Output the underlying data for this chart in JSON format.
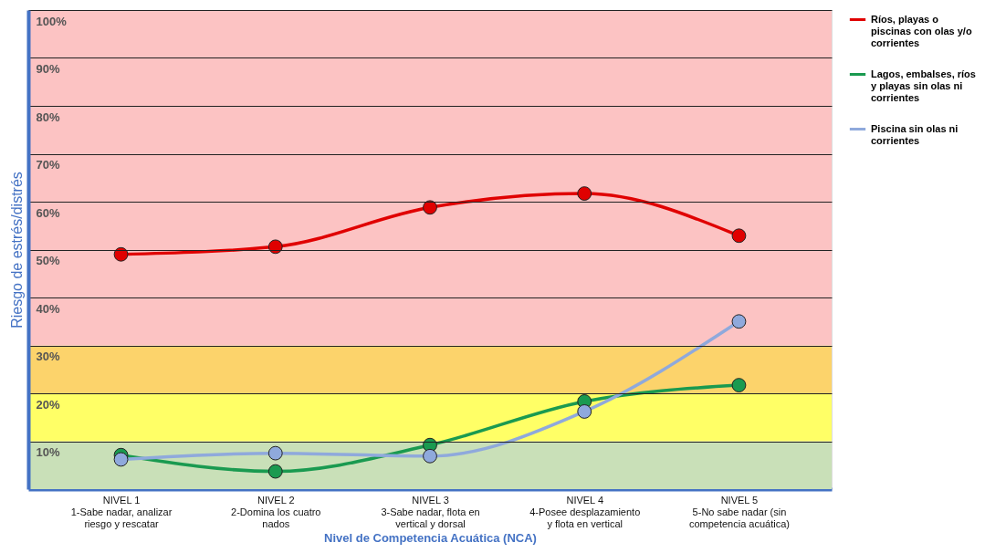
{
  "chart_data": {
    "type": "line",
    "xlabel": "Nivel de Competencia Acuática (NCA)",
    "ylabel": "Riesgo de estrés/distrés",
    "categories": [
      "NIVEL 1\n1-Sabe nadar, analizar\nriesgo y rescatar",
      "NIVEL 2\n2-Domina los cuatro\nnados",
      "NIVEL 3\n3-Sabe nadar, flota en\nvertical y dorsal",
      "NIVEL 4\n4-Posee desplazamiento\ny flota en vertical",
      "NIVEL 5\n5-No sabe nadar (sin\ncompetencia acuática)"
    ],
    "series": [
      {
        "name": "Ríos, playas o piscinas con olas y/o corrientes",
        "color": "#e00000",
        "values": [
          49,
          50.6,
          58.8,
          61.7,
          52.9
        ]
      },
      {
        "name": "Lagos, embalses, ríos y playas sin olas ni corrientes",
        "color": "#1a9a50",
        "values": [
          7.1,
          3.7,
          9.2,
          18.3,
          21.7
        ]
      },
      {
        "name": "Piscina sin olas ni corrientes",
        "color": "#8fa9dc",
        "values": [
          6.2,
          7.5,
          6.9,
          16.2,
          35.0
        ]
      }
    ],
    "ylim": [
      0,
      100
    ],
    "yticks": [
      {
        "value": 10,
        "label": "10%"
      },
      {
        "value": 20,
        "label": "20%"
      },
      {
        "value": 30,
        "label": "30%"
      },
      {
        "value": 40,
        "label": "40%"
      },
      {
        "value": 50,
        "label": "50%"
      },
      {
        "value": 60,
        "label": "60%"
      },
      {
        "value": 70,
        "label": "70%"
      },
      {
        "value": 80,
        "label": "80%"
      },
      {
        "value": 90,
        "label": "90%"
      },
      {
        "value": 100,
        "label": "100%"
      }
    ],
    "bands": [
      {
        "axis": "y",
        "from": 0,
        "to": 10,
        "color": "#c9e0b8"
      },
      {
        "axis": "y",
        "from": 10,
        "to": 20,
        "color": "#ffff66"
      },
      {
        "axis": "y",
        "from": 20,
        "to": 30,
        "color": "#fcd36b"
      },
      {
        "axis": "y",
        "from": 30,
        "to": 100,
        "color": "#fcc3c3"
      }
    ],
    "grid": "y",
    "legend": "right",
    "marker": "circle",
    "line_style": "solid"
  }
}
